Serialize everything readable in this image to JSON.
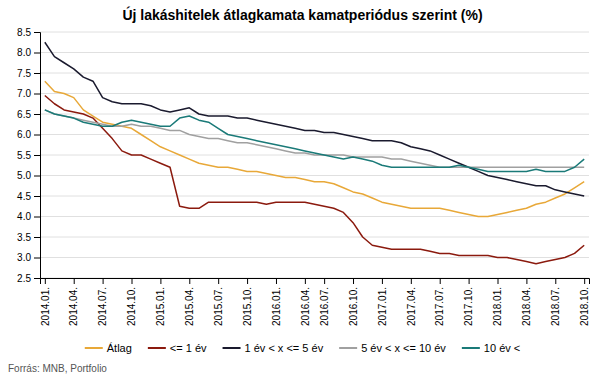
{
  "chart_data": {
    "type": "line",
    "title": "Új lakáshitelek átlagkamata kamatperiódus szerint (%)",
    "annotations": [
      "Forrás: MNB, Portfolio"
    ],
    "categories": [
      "2014.01.",
      null,
      null,
      "2014.04.",
      null,
      null,
      "2014.07.",
      null,
      null,
      "2014.10.",
      null,
      null,
      "2015.01.",
      null,
      null,
      "2015.04.",
      null,
      null,
      "2015.07.",
      null,
      null,
      "2015.10.",
      null,
      null,
      "2016.01.",
      null,
      null,
      "2016.04.",
      null,
      "2016.07.",
      null,
      null,
      "2016.10.",
      null,
      null,
      "2017.01.",
      null,
      null,
      "2017.04.",
      null,
      null,
      "2017.07.",
      null,
      null,
      "2017.10.",
      null,
      null,
      "2018.01.",
      null,
      null,
      "2018.04.",
      null,
      null,
      "2018.07.",
      null,
      null,
      "2018.10."
    ],
    "series": [
      {
        "name": "Átlag",
        "color": "#E8A838",
        "values": [
          7.3,
          7.05,
          7.0,
          6.9,
          6.6,
          6.45,
          6.3,
          6.25,
          6.2,
          6.15,
          6.0,
          5.85,
          5.7,
          5.6,
          5.5,
          5.4,
          5.3,
          5.25,
          5.2,
          5.2,
          5.15,
          5.1,
          5.1,
          5.05,
          5.0,
          4.95,
          4.95,
          4.9,
          4.85,
          4.85,
          4.8,
          4.7,
          4.6,
          4.55,
          4.45,
          4.35,
          4.3,
          4.25,
          4.2,
          4.2,
          4.2,
          4.2,
          4.15,
          4.1,
          4.05,
          4.0,
          4.0,
          4.05,
          4.1,
          4.15,
          4.2,
          4.3,
          4.35,
          4.45,
          4.55,
          4.7,
          4.85
        ]
      },
      {
        "name": "<= 1 év",
        "color": "#8B1A0E",
        "values": [
          6.95,
          6.75,
          6.6,
          6.55,
          6.5,
          6.4,
          6.15,
          5.9,
          5.6,
          5.5,
          5.5,
          5.4,
          5.3,
          5.2,
          4.25,
          4.2,
          4.2,
          4.35,
          4.35,
          4.35,
          4.35,
          4.35,
          4.35,
          4.3,
          4.35,
          4.35,
          4.35,
          4.35,
          4.3,
          4.25,
          4.2,
          4.1,
          3.85,
          3.5,
          3.3,
          3.25,
          3.2,
          3.2,
          3.2,
          3.2,
          3.15,
          3.1,
          3.1,
          3.05,
          3.05,
          3.05,
          3.05,
          3.0,
          3.0,
          2.95,
          2.9,
          2.85,
          2.9,
          2.95,
          3.0,
          3.1,
          3.3
        ]
      },
      {
        "name": "1 év < x <= 5 év",
        "color": "#1A1A2E",
        "values": [
          8.25,
          7.9,
          7.75,
          7.6,
          7.4,
          7.3,
          6.9,
          6.8,
          6.75,
          6.75,
          6.75,
          6.7,
          6.6,
          6.55,
          6.6,
          6.65,
          6.5,
          6.45,
          6.45,
          6.45,
          6.4,
          6.4,
          6.35,
          6.3,
          6.25,
          6.2,
          6.15,
          6.1,
          6.1,
          6.05,
          6.05,
          6.0,
          5.95,
          5.9,
          5.85,
          5.85,
          5.85,
          5.8,
          5.7,
          5.65,
          5.6,
          5.5,
          5.4,
          5.3,
          5.2,
          5.1,
          5.0,
          4.95,
          4.9,
          4.85,
          4.8,
          4.75,
          4.75,
          4.65,
          4.6,
          4.55,
          4.5
        ]
      },
      {
        "name": "5 év < x <= 10 év",
        "color": "#A0A0A0",
        "values": [
          6.6,
          6.5,
          6.45,
          6.4,
          6.35,
          6.3,
          6.25,
          6.2,
          6.2,
          6.25,
          6.2,
          6.2,
          6.15,
          6.1,
          6.1,
          6.0,
          5.95,
          5.9,
          5.9,
          5.85,
          5.8,
          5.8,
          5.75,
          5.7,
          5.65,
          5.6,
          5.55,
          5.55,
          5.5,
          5.5,
          5.5,
          5.5,
          5.45,
          5.45,
          5.45,
          5.45,
          5.4,
          5.4,
          5.35,
          5.3,
          5.25,
          5.2,
          5.2,
          5.2,
          5.2,
          5.2,
          5.2,
          5.2,
          5.2,
          5.2,
          5.2,
          5.2,
          5.2,
          5.2,
          5.2,
          5.2,
          5.2
        ]
      },
      {
        "name": "10 év <",
        "color": "#1A7A78",
        "values": [
          6.6,
          6.5,
          6.45,
          6.4,
          6.3,
          6.25,
          6.2,
          6.2,
          6.3,
          6.35,
          6.3,
          6.25,
          6.2,
          6.2,
          6.4,
          6.45,
          6.35,
          6.3,
          6.15,
          6.0,
          5.95,
          5.9,
          5.85,
          5.8,
          5.75,
          5.7,
          5.65,
          5.6,
          5.55,
          5.5,
          5.45,
          5.4,
          5.45,
          5.4,
          5.35,
          5.25,
          5.2,
          5.2,
          5.2,
          5.2,
          5.2,
          5.2,
          5.2,
          5.25,
          5.2,
          5.15,
          5.1,
          5.1,
          5.1,
          5.1,
          5.1,
          5.15,
          5.1,
          5.1,
          5.1,
          5.2,
          5.4
        ]
      }
    ],
    "ylim": [
      2.5,
      8.5
    ],
    "yticks": [
      2.5,
      {
        "value": 3,
        "label": "3.0"
      },
      3.5,
      {
        "value": 4,
        "label": "4.0"
      },
      4.5,
      {
        "value": 5,
        "label": "5.0"
      },
      5.5,
      {
        "value": 6,
        "label": "6.0"
      },
      6.5,
      {
        "value": 7,
        "label": "7.0"
      },
      7.5,
      {
        "value": 8,
        "label": "8.0"
      },
      8.5
    ],
    "grid": true,
    "legend": "bottom"
  }
}
